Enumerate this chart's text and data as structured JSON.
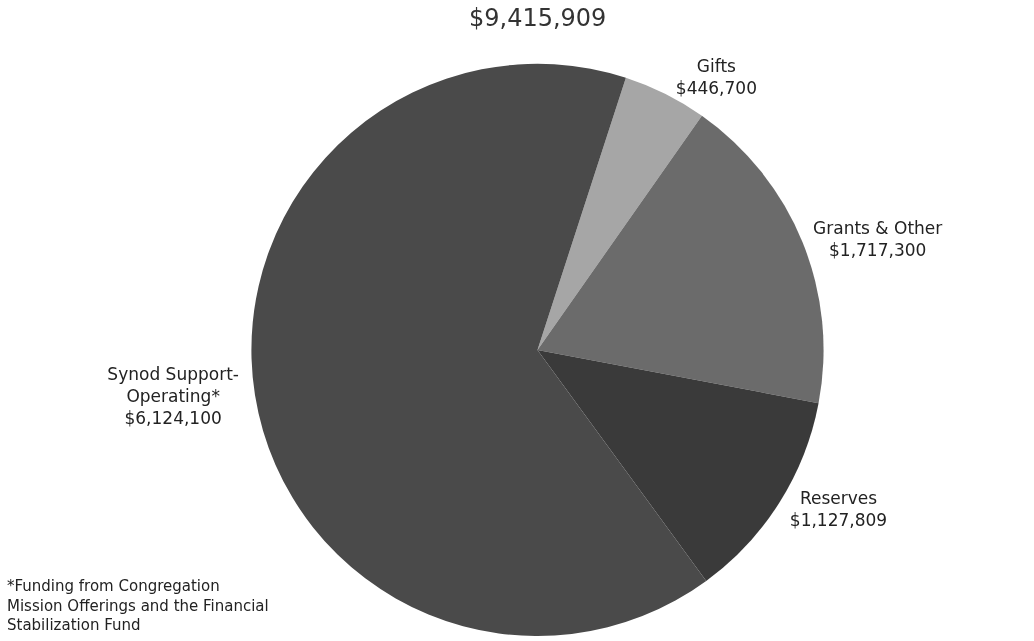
{
  "chart_data": {
    "type": "pie",
    "title": "$9,415,909",
    "categories": [
      "Gifts",
      "Grants & Other",
      "Reserves",
      "Synod Support-\nOperating*"
    ],
    "values": [
      446700,
      1717300,
      1127809,
      6124100
    ],
    "value_labels": [
      "$446,700",
      "$1,717,300",
      "$1,127,809",
      "$6,124,100"
    ],
    "colors": [
      "#a6a6a6",
      "#6b6b6b",
      "#3a3a3a",
      "#4a4a4a"
    ],
    "annotations": [
      "*Funding from Congregation\nMission Offerings and the Financial\nStabilization Fund"
    ],
    "legend": false
  }
}
